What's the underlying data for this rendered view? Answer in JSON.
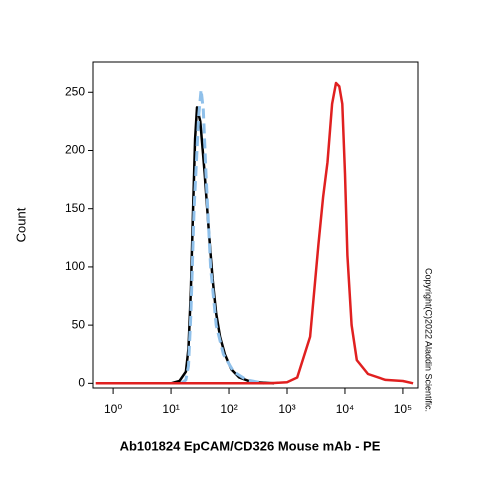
{
  "chart_data": {
    "type": "line",
    "title": "Ab101824 EpCAM/CD326 Mouse mAb - PE",
    "ylabel": "Count",
    "annotation": "Copyright(C)2022 Aladdin Scientific.",
    "xlog": true,
    "xlim": [
      0.45,
      182000
    ],
    "ylim": [
      -4,
      276
    ],
    "xticks": [
      {
        "value": 1,
        "label": "10⁰"
      },
      {
        "value": 10,
        "label": "10¹"
      },
      {
        "value": 100,
        "label": "10²"
      },
      {
        "value": 1000,
        "label": "10³"
      },
      {
        "value": 10000,
        "label": "10⁴"
      },
      {
        "value": 100000,
        "label": "10⁵"
      }
    ],
    "yticks": [
      0,
      50,
      100,
      150,
      200,
      250
    ],
    "series": [
      {
        "color": "#000000",
        "style": "solid",
        "x": [
          10,
          14,
          18,
          20,
          22,
          24,
          26,
          28,
          32,
          38,
          45,
          52,
          60,
          70,
          85,
          110,
          150,
          250,
          600
        ],
        "values": [
          0,
          2,
          10,
          30,
          80,
          150,
          210,
          237,
          225,
          180,
          130,
          90,
          60,
          40,
          25,
          12,
          5,
          1,
          0
        ]
      },
      {
        "color": "#8fc0ea",
        "style": "dashed",
        "x": [
          15,
          18,
          20,
          22,
          25,
          30,
          33,
          36,
          40,
          48,
          60,
          80,
          120,
          200,
          400
        ],
        "values": [
          0,
          3,
          15,
          60,
          150,
          230,
          252,
          235,
          180,
          100,
          50,
          25,
          10,
          3,
          0
        ]
      },
      {
        "color": "#e02020",
        "style": "solid",
        "x": [
          0.5,
          500,
          1000,
          1500,
          2500,
          3500,
          4200,
          5000,
          6000,
          7000,
          8000,
          9000,
          10000,
          11000,
          13000,
          16000,
          25000,
          50000,
          100000,
          150000
        ],
        "values": [
          0,
          0,
          1,
          5,
          40,
          120,
          160,
          190,
          240,
          258,
          255,
          240,
          180,
          110,
          50,
          20,
          8,
          3,
          2,
          0
        ]
      }
    ]
  }
}
